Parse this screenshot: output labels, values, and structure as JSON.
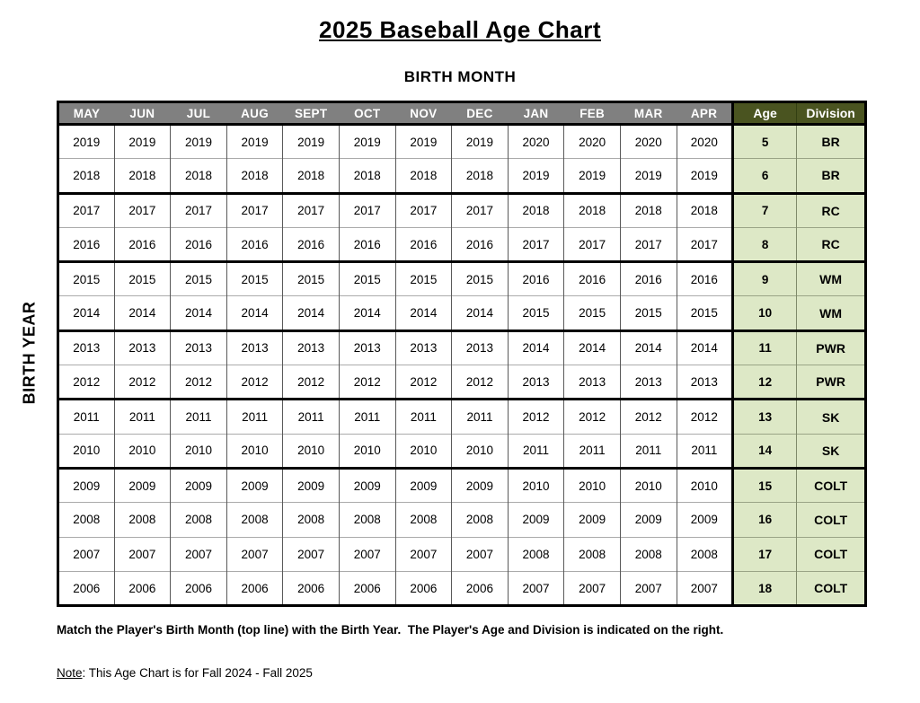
{
  "title": "2025 Baseball Age Chart",
  "subtitle": "BIRTH MONTH",
  "left_axis_label": "BIRTH YEAR",
  "colors": {
    "month_header_bg": "#808080",
    "month_header_text": "#ffffff",
    "age_division_header_bg": "#4a5420",
    "age_division_cell_bg": "#dde8c6"
  },
  "table": {
    "month_headers": [
      "MAY",
      "JUN",
      "JUL",
      "AUG",
      "SEPT",
      "OCT",
      "NOV",
      "DEC",
      "JAN",
      "FEB",
      "MAR",
      "APR"
    ],
    "age_header": "Age",
    "division_header": "Division",
    "rows": [
      {
        "years": [
          "2019",
          "2019",
          "2019",
          "2019",
          "2019",
          "2019",
          "2019",
          "2019",
          "2020",
          "2020",
          "2020",
          "2020"
        ],
        "age": "5",
        "division": "BR",
        "group_start": true
      },
      {
        "years": [
          "2018",
          "2018",
          "2018",
          "2018",
          "2018",
          "2018",
          "2018",
          "2018",
          "2019",
          "2019",
          "2019",
          "2019"
        ],
        "age": "6",
        "division": "BR",
        "group_start": false
      },
      {
        "years": [
          "2017",
          "2017",
          "2017",
          "2017",
          "2017",
          "2017",
          "2017",
          "2017",
          "2018",
          "2018",
          "2018",
          "2018"
        ],
        "age": "7",
        "division": "RC",
        "group_start": true
      },
      {
        "years": [
          "2016",
          "2016",
          "2016",
          "2016",
          "2016",
          "2016",
          "2016",
          "2016",
          "2017",
          "2017",
          "2017",
          "2017"
        ],
        "age": "8",
        "division": "RC",
        "group_start": false
      },
      {
        "years": [
          "2015",
          "2015",
          "2015",
          "2015",
          "2015",
          "2015",
          "2015",
          "2015",
          "2016",
          "2016",
          "2016",
          "2016"
        ],
        "age": "9",
        "division": "WM",
        "group_start": true
      },
      {
        "years": [
          "2014",
          "2014",
          "2014",
          "2014",
          "2014",
          "2014",
          "2014",
          "2014",
          "2015",
          "2015",
          "2015",
          "2015"
        ],
        "age": "10",
        "division": "WM",
        "group_start": false
      },
      {
        "years": [
          "2013",
          "2013",
          "2013",
          "2013",
          "2013",
          "2013",
          "2013",
          "2013",
          "2014",
          "2014",
          "2014",
          "2014"
        ],
        "age": "11",
        "division": "PWR",
        "group_start": true
      },
      {
        "years": [
          "2012",
          "2012",
          "2012",
          "2012",
          "2012",
          "2012",
          "2012",
          "2012",
          "2013",
          "2013",
          "2013",
          "2013"
        ],
        "age": "12",
        "division": "PWR",
        "group_start": false
      },
      {
        "years": [
          "2011",
          "2011",
          "2011",
          "2011",
          "2011",
          "2011",
          "2011",
          "2011",
          "2012",
          "2012",
          "2012",
          "2012"
        ],
        "age": "13",
        "division": "SK",
        "group_start": true
      },
      {
        "years": [
          "2010",
          "2010",
          "2010",
          "2010",
          "2010",
          "2010",
          "2010",
          "2010",
          "2011",
          "2011",
          "2011",
          "2011"
        ],
        "age": "14",
        "division": "SK",
        "group_start": false
      },
      {
        "years": [
          "2009",
          "2009",
          "2009",
          "2009",
          "2009",
          "2009",
          "2009",
          "2009",
          "2010",
          "2010",
          "2010",
          "2010"
        ],
        "age": "15",
        "division": "COLT",
        "group_start": true
      },
      {
        "years": [
          "2008",
          "2008",
          "2008",
          "2008",
          "2008",
          "2008",
          "2008",
          "2008",
          "2009",
          "2009",
          "2009",
          "2009"
        ],
        "age": "16",
        "division": "COLT",
        "group_start": false
      },
      {
        "years": [
          "2007",
          "2007",
          "2007",
          "2007",
          "2007",
          "2007",
          "2007",
          "2007",
          "2008",
          "2008",
          "2008",
          "2008"
        ],
        "age": "17",
        "division": "COLT",
        "group_start": false
      },
      {
        "years": [
          "2006",
          "2006",
          "2006",
          "2006",
          "2006",
          "2006",
          "2006",
          "2006",
          "2007",
          "2007",
          "2007",
          "2007"
        ],
        "age": "18",
        "division": "COLT",
        "group_start": false
      }
    ]
  },
  "footer": {
    "instruction": "Match the Player's Birth Month (top line) with the Birth Year.  The Player's Age and Division is indicated on the right.",
    "note_label": "Note",
    "note_text": ": This Age Chart is for Fall 2024 - Fall 2025"
  }
}
